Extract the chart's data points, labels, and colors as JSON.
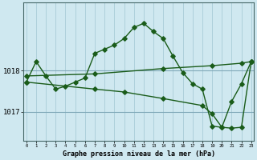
{
  "title": "Graphe pression niveau de la mer (hPa)",
  "background_color": "#cfe8f0",
  "grid_color_v": "#a8ccd8",
  "grid_color_h": "#80a8b8",
  "line_color": "#1a5c1a",
  "xlim": [
    -0.3,
    23.3
  ],
  "ylim": [
    1016.3,
    1019.65
  ],
  "yticks": [
    1017,
    1018
  ],
  "xticks": [
    0,
    1,
    2,
    3,
    4,
    5,
    6,
    7,
    8,
    9,
    10,
    11,
    12,
    13,
    14,
    15,
    16,
    17,
    18,
    19,
    20,
    21,
    22,
    23
  ],
  "line_main_x": [
    0,
    1,
    2,
    3,
    4,
    5,
    6,
    7,
    8,
    9,
    10,
    11,
    12,
    13,
    14,
    15,
    16,
    17,
    18,
    19,
    20,
    21,
    22,
    23
  ],
  "line_main_y": [
    1017.72,
    1018.22,
    1017.87,
    1017.55,
    1017.62,
    1017.72,
    1017.82,
    1018.42,
    1018.52,
    1018.62,
    1018.78,
    1019.05,
    1019.15,
    1018.95,
    1018.78,
    1018.35,
    1017.95,
    1017.68,
    1017.55,
    1016.65,
    1016.62,
    1017.25,
    1017.68,
    1018.22
  ],
  "line_upper_x": [
    0,
    7,
    14,
    19,
    22,
    23
  ],
  "line_upper_y": [
    1017.87,
    1017.92,
    1018.05,
    1018.12,
    1018.18,
    1018.22
  ],
  "line_lower_x": [
    0,
    7,
    10,
    14,
    18,
    19,
    20,
    21,
    22,
    23
  ],
  "line_lower_y": [
    1017.72,
    1017.55,
    1017.48,
    1017.32,
    1017.15,
    1016.95,
    1016.62,
    1016.6,
    1016.62,
    1018.22
  ]
}
